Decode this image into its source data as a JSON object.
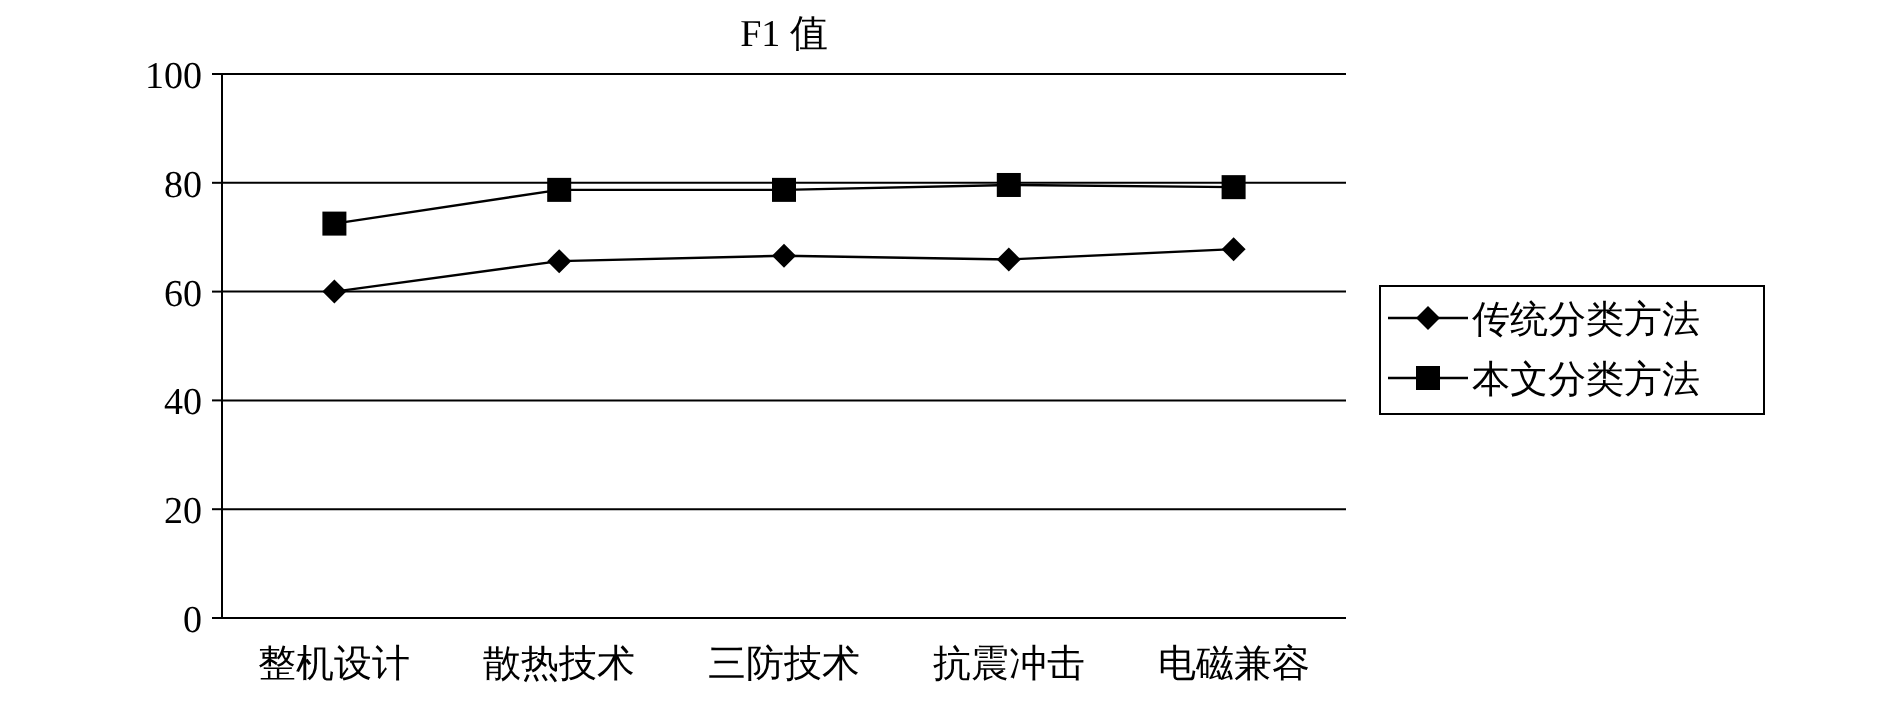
{
  "chart_data": {
    "type": "line",
    "title": "F1 值",
    "categories": [
      "整机设计",
      "散热技术",
      "三防技术",
      "抗震冲击",
      "电磁兼容"
    ],
    "series": [
      {
        "name": "传统分类方法",
        "color": "#000000",
        "marker": "diamond",
        "values": [
          60,
          65.6,
          66.6,
          65.9,
          67.8
        ]
      },
      {
        "name": "本文分类方法",
        "color": "#000000",
        "marker": "square",
        "values": [
          72.5,
          78.7,
          78.7,
          79.6,
          79.2
        ]
      }
    ],
    "ylim": [
      0,
      100
    ],
    "yticks": [
      0,
      20,
      40,
      60,
      80,
      100
    ],
    "grid": "y",
    "legend": "right",
    "line_style": "solid"
  }
}
